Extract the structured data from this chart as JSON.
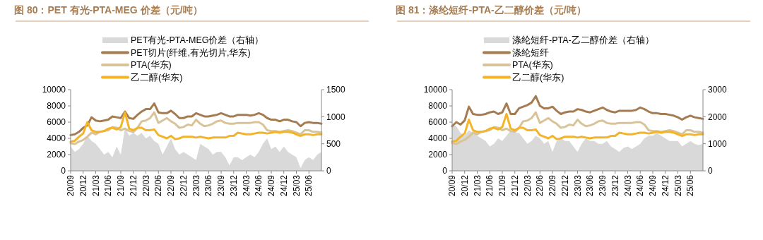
{
  "chart_data": [
    {
      "type": "line",
      "title": "图 80：PET 有光-PTA-MEG 价差（元/吨）",
      "legend": "top",
      "categories": [
        "20/09",
        null,
        null,
        "20/12",
        null,
        null,
        "21/03",
        null,
        null,
        "21/06",
        null,
        null,
        "21/09",
        null,
        null,
        "21/12",
        null,
        null,
        "22/03",
        null,
        null,
        "22/06",
        null,
        null,
        "22/09",
        null,
        null,
        "22/12",
        null,
        null,
        "23/03",
        null,
        null,
        "23/06",
        null,
        null,
        "23/09",
        null,
        null,
        "23/12",
        null,
        null,
        "24/03",
        null,
        null,
        "24/06",
        null,
        null,
        "24/09",
        null,
        null,
        "24/12",
        null,
        null,
        "25/03",
        null,
        null,
        "25/06",
        null,
        null,
        null
      ],
      "ylim": [
        0,
        10000
      ],
      "yticks": [
        0,
        2000,
        4000,
        6000,
        8000,
        10000
      ],
      "y2lim": [
        0,
        1500
      ],
      "y2ticks": [
        0,
        500,
        1000,
        1500
      ],
      "series": [
        {
          "name": "PET有光-PTA-MEG价差（右轴）",
          "type": "area",
          "axis": "y2",
          "color": "#d9d9d9",
          "values": [
            450,
            350,
            400,
            500,
            650,
            550,
            500,
            400,
            300,
            350,
            250,
            450,
            300,
            800,
            650,
            700,
            650,
            700,
            600,
            650,
            550,
            500,
            300,
            450,
            600,
            400,
            300,
            350,
            300,
            250,
            200,
            500,
            450,
            400,
            300,
            350,
            350,
            250,
            100,
            250,
            250,
            200,
            250,
            300,
            250,
            350,
            500,
            600,
            400,
            450,
            350,
            450,
            350,
            300,
            250,
            50,
            200,
            250,
            200,
            300,
            350
          ]
        },
        {
          "name": "PET切片(纤维,有光切片,华东)",
          "color": "#a57c52",
          "values": [
            4400,
            4500,
            4800,
            5300,
            5600,
            6600,
            6200,
            6100,
            6200,
            6300,
            6700,
            6600,
            6500,
            7300,
            6500,
            6400,
            6900,
            7300,
            7600,
            7600,
            8300,
            7200,
            7100,
            7100,
            7400,
            7000,
            6500,
            6500,
            6700,
            6700,
            7100,
            6900,
            6700,
            6700,
            6800,
            6900,
            7100,
            6900,
            6700,
            6700,
            6900,
            6900,
            6900,
            6800,
            6900,
            7100,
            6900,
            6500,
            6300,
            6300,
            6100,
            6300,
            6300,
            6100,
            6000,
            5500,
            5900,
            6000,
            5900,
            5900,
            5800
          ]
        },
        {
          "name": "PTA(华东)",
          "color": "#d9c49a",
          "values": [
            3400,
            3300,
            3600,
            3800,
            4200,
            4700,
            4500,
            4800,
            4900,
            5000,
            5400,
            5300,
            5000,
            5200,
            4900,
            4800,
            5300,
            6100,
            6200,
            6500,
            7200,
            5900,
            6200,
            6500,
            6100,
            5800,
            5300,
            5400,
            5700,
            5600,
            6300,
            5800,
            5500,
            5600,
            5800,
            6100,
            6200,
            5900,
            5800,
            5800,
            5900,
            5900,
            5900,
            5900,
            6000,
            6000,
            5700,
            5000,
            4900,
            4900,
            4800,
            4900,
            5000,
            4900,
            4700,
            4500,
            5000,
            5000,
            4800,
            4800,
            4700
          ]
        },
        {
          "name": "乙二醇(华东)",
          "color": "#f4b42a",
          "values": [
            3600,
            3700,
            4200,
            4600,
            6000,
            5000,
            4800,
            4800,
            4900,
            5200,
            5300,
            5100,
            5400,
            7200,
            5200,
            5000,
            5300,
            5300,
            5000,
            5000,
            5100,
            4400,
            4200,
            4000,
            4300,
            3900,
            4000,
            4200,
            4200,
            4200,
            4100,
            4200,
            4100,
            4000,
            4100,
            4100,
            4100,
            4100,
            4300,
            4300,
            4700,
            4600,
            4500,
            4500,
            4600,
            4700,
            4700,
            4600,
            4700,
            4800,
            4700,
            4800,
            4800,
            4700,
            4500,
            4300,
            4500,
            4500,
            4400,
            4500,
            4500
          ]
        }
      ]
    },
    {
      "type": "line",
      "title": "图 81：涤纶短纤-PTA-乙二醇价差（元/吨）",
      "legend": "top",
      "categories": [
        "20/09",
        null,
        null,
        "20/12",
        null,
        null,
        "21/03",
        null,
        null,
        "21/06",
        null,
        null,
        "21/09",
        null,
        null,
        "21/12",
        null,
        null,
        "22/03",
        null,
        null,
        "22/06",
        null,
        null,
        "22/09",
        null,
        null,
        "22/12",
        null,
        null,
        "23/03",
        null,
        null,
        "23/06",
        null,
        null,
        "23/09",
        null,
        null,
        "23/12",
        null,
        null,
        "24/03",
        null,
        null,
        "24/06",
        null,
        null,
        "24/09",
        null,
        null,
        "24/12",
        null,
        null,
        "25/03",
        null,
        null,
        "25/06",
        null,
        null,
        null
      ],
      "ylim": [
        0,
        10000
      ],
      "yticks": [
        0,
        2000,
        4000,
        6000,
        8000,
        10000
      ],
      "y2lim": [
        0,
        3000
      ],
      "y2ticks": [
        0,
        1000,
        2000,
        3000
      ],
      "series": [
        {
          "name": "涤纶短纤-PTA-乙二醇价差（右轴）",
          "type": "area",
          "axis": "y2",
          "color": "#d9d9d9",
          "values": [
            1700,
            1650,
            1400,
            1300,
            1500,
            1400,
            1300,
            1200,
            1100,
            900,
            1000,
            1200,
            1100,
            1300,
            1500,
            1400,
            1400,
            1200,
            1000,
            1100,
            1300,
            1200,
            1000,
            1100,
            700,
            1100,
            1200,
            1100,
            1100,
            900,
            700,
            1000,
            1200,
            1100,
            1100,
            1000,
            1000,
            1100,
            900,
            800,
            700,
            850,
            900,
            800,
            900,
            1000,
            1200,
            1300,
            1300,
            1400,
            1300,
            1200,
            1100,
            1100,
            1100,
            900,
            1000,
            1100,
            1000,
            950,
            1000
          ]
        },
        {
          "name": "涤纶短纤",
          "color": "#a57c52",
          "values": [
            5500,
            6000,
            5700,
            6200,
            7900,
            7000,
            6900,
            6900,
            7000,
            7200,
            7300,
            7000,
            7200,
            8300,
            7000,
            7000,
            7700,
            7900,
            8100,
            8400,
            9200,
            8000,
            7700,
            7700,
            7900,
            7400,
            7000,
            7200,
            7300,
            7300,
            7600,
            7500,
            7300,
            7200,
            7400,
            7600,
            7800,
            7500,
            7300,
            7200,
            7400,
            7400,
            7400,
            7400,
            7500,
            7800,
            7600,
            7300,
            7100,
            7100,
            7000,
            7000,
            6900,
            6800,
            6600,
            6300,
            6600,
            6800,
            6600,
            6500,
            6400
          ]
        },
        {
          "name": "PTA(华东)",
          "color": "#d9c49a",
          "values": [
            3400,
            3300,
            3600,
            3800,
            4200,
            4700,
            4500,
            4800,
            4900,
            5000,
            5400,
            5300,
            5000,
            5200,
            4900,
            4800,
            5300,
            6100,
            6200,
            6500,
            7200,
            5900,
            6200,
            6500,
            6100,
            5800,
            5300,
            5400,
            5700,
            5600,
            6300,
            5800,
            5500,
            5600,
            5800,
            6100,
            6200,
            5900,
            5800,
            5800,
            5900,
            5900,
            5900,
            5900,
            6000,
            6000,
            5700,
            5000,
            4900,
            4900,
            4800,
            4900,
            5000,
            4900,
            4700,
            4500,
            5000,
            5000,
            4800,
            4800,
            4700
          ]
        },
        {
          "name": "乙二醇(华东)",
          "color": "#f4b42a",
          "values": [
            3600,
            3700,
            4200,
            4600,
            6300,
            5000,
            4800,
            4800,
            4900,
            5200,
            5300,
            5100,
            5400,
            7000,
            5200,
            5000,
            5300,
            5300,
            5000,
            5000,
            5100,
            4400,
            4200,
            4000,
            4300,
            3900,
            4000,
            4200,
            4200,
            4200,
            4100,
            4200,
            4100,
            4000,
            4100,
            4100,
            4100,
            4100,
            4300,
            4300,
            4700,
            4600,
            4500,
            4500,
            4600,
            4700,
            4700,
            4600,
            4700,
            4800,
            4700,
            4800,
            4800,
            4700,
            4500,
            4300,
            4500,
            4500,
            4400,
            4500,
            4500
          ]
        }
      ]
    }
  ]
}
